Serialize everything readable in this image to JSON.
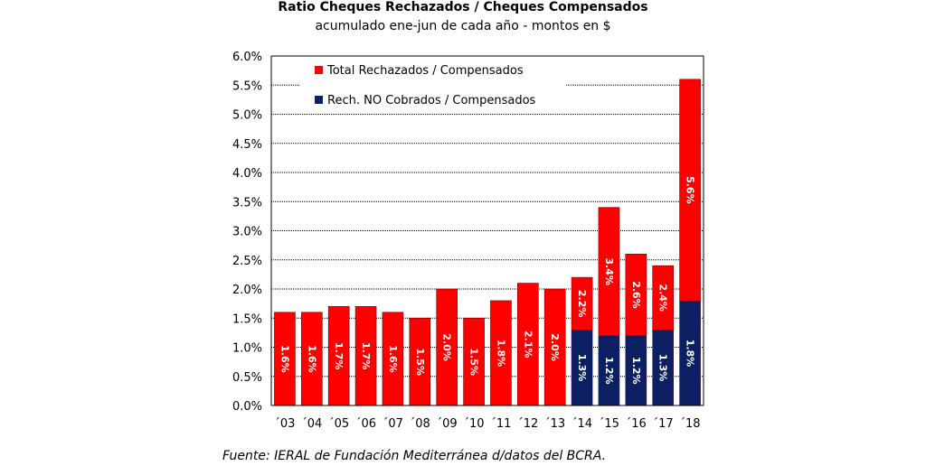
{
  "chart_data": {
    "type": "bar",
    "title": "Ratio Cheques Rechazados / Cheques Compensados",
    "subtitle": "acumulado ene-jun de cada año - montos en $",
    "source": "Fuente: IERAL de Fundación Mediterránea d/datos del BCRA.",
    "categories": [
      "´03",
      "´04",
      "´05",
      "´06",
      "´07",
      "´08",
      "´09",
      "´10",
      "´11",
      "´12",
      "´13",
      "´14",
      "´15",
      "´16",
      "´17",
      "´18"
    ],
    "ylim": [
      0,
      6.0
    ],
    "yticks": [
      "0.0%",
      "0.5%",
      "1.0%",
      "1.5%",
      "2.0%",
      "2.5%",
      "3.0%",
      "3.5%",
      "4.0%",
      "4.5%",
      "5.0%",
      "5.5%",
      "6.0%"
    ],
    "grid": true,
    "legend_position": "top-left",
    "series": [
      {
        "name": "Total Rechazados / Compensados",
        "color": "#ff0000",
        "values": [
          1.6,
          1.6,
          1.7,
          1.7,
          1.6,
          1.5,
          2.0,
          1.5,
          1.8,
          2.1,
          2.0,
          2.2,
          3.4,
          2.6,
          2.4,
          5.6
        ],
        "labels": [
          "1.6%",
          "1.6%",
          "1.7%",
          "1.7%",
          "1.6%",
          "1.5%",
          "2.0%",
          "1.5%",
          "1.8%",
          "2.1%",
          "2.0%",
          "2.2%",
          "3.4%",
          "2.6%",
          "2.4%",
          "5.6%"
        ]
      },
      {
        "name": "Rech. NO Cobrados / Compensados",
        "color": "#0d1f63",
        "values": [
          null,
          null,
          null,
          null,
          null,
          null,
          null,
          null,
          null,
          null,
          null,
          1.3,
          1.2,
          1.2,
          1.3,
          1.8
        ],
        "labels": [
          "",
          "",
          "",
          "",
          "",
          "",
          "",
          "",
          "",
          "",
          "",
          "1.3%",
          "1.2%",
          "1.2%",
          "1.3%",
          "1.8%"
        ]
      }
    ]
  }
}
